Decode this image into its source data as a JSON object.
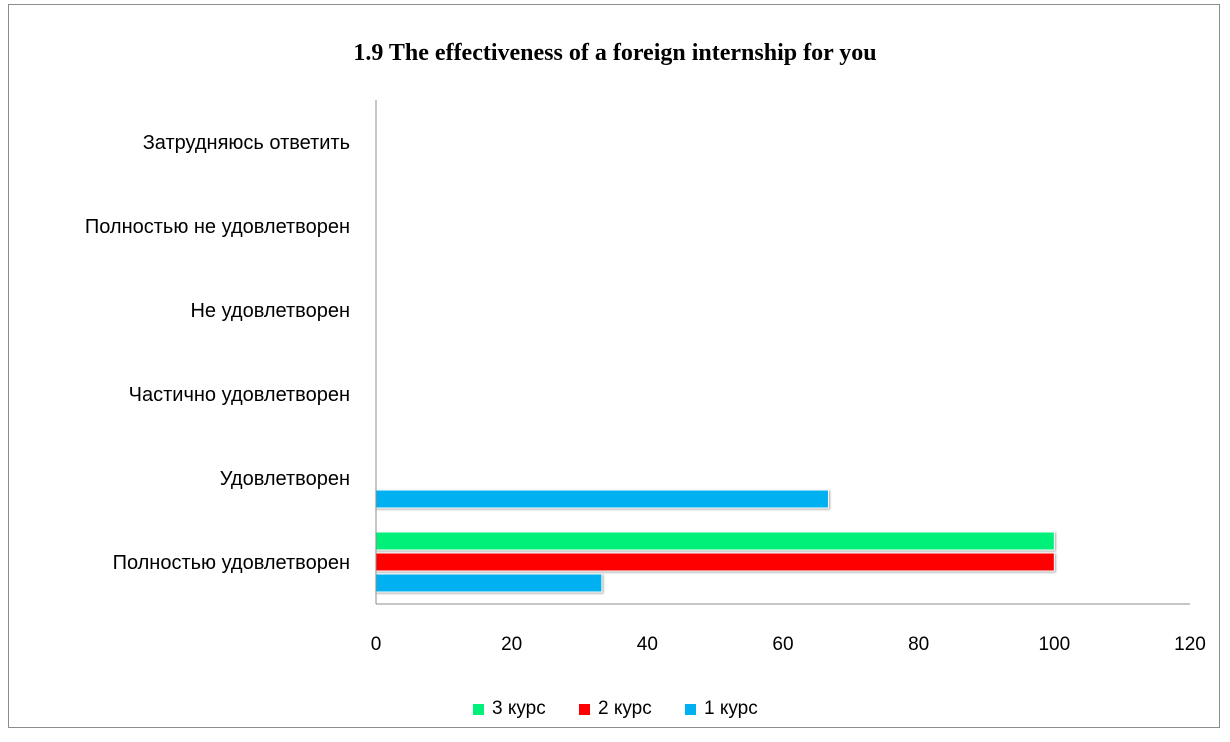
{
  "chart_data": {
    "type": "bar",
    "orientation": "horizontal",
    "title": "1.9 The effectiveness of a foreign internship for you",
    "categories": [
      "Полностью удовлетворен",
      "Удовлетворен",
      "Частично удовлетворен",
      "Не удовлетворен",
      "Полностью не удовлетворен",
      "Затрудняюсь ответить"
    ],
    "series": [
      {
        "name": "1 курс",
        "color": "#00b0f0",
        "values": [
          33.3,
          66.7,
          0,
          0,
          0,
          0
        ]
      },
      {
        "name": "2 курс",
        "color": "#ff0000",
        "values": [
          100,
          0,
          0,
          0,
          0,
          0
        ]
      },
      {
        "name": "3 курс",
        "color": "#00f07a",
        "values": [
          100,
          0,
          0,
          0,
          0,
          0
        ]
      }
    ],
    "xlim": [
      0,
      120
    ],
    "x_ticks": [
      "0",
      "20",
      "40",
      "60",
      "80",
      "100",
      "120"
    ],
    "grid": false,
    "legend_position": "bottom",
    "legend_order": [
      "3 курс",
      "2 курс",
      "1 курс"
    ]
  }
}
